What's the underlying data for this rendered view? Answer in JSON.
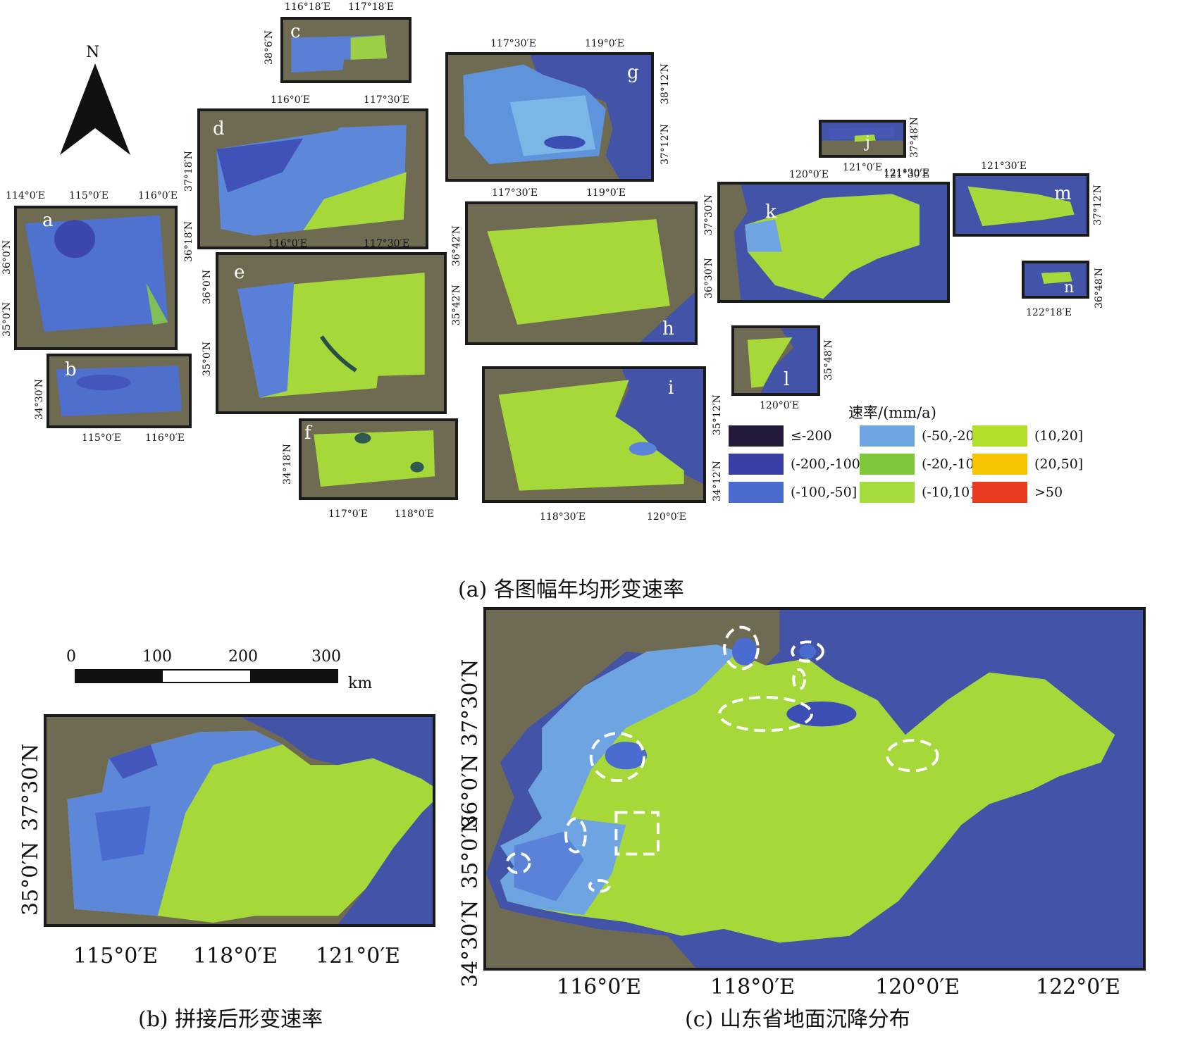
{
  "north_arrow": {
    "label": "N"
  },
  "panels": [
    {
      "id": "a",
      "letter": "a",
      "ticks_top": [
        "114°0′E",
        "115°0′E",
        "116°0′E"
      ],
      "ticks_left": [
        "36°0′N",
        "35°0′N"
      ]
    },
    {
      "id": "b",
      "letter": "b",
      "ticks_bottom": [
        "115°0′E",
        "116°0′E"
      ],
      "ticks_left": [
        "34°30′N"
      ]
    },
    {
      "id": "c",
      "letter": "c",
      "ticks_top": [
        "116°18′E",
        "117°18′E"
      ],
      "ticks_left": [
        "38°6′N"
      ]
    },
    {
      "id": "d",
      "letter": "d",
      "ticks_top": [
        "116°0′E",
        "117°30′E"
      ],
      "ticks_left": [
        "37°18′N",
        "36°18′N"
      ]
    },
    {
      "id": "e",
      "letter": "e",
      "ticks_top": [
        "116°0′E",
        "117°30′E"
      ],
      "ticks_left": [
        "36°0′N",
        "35°0′N"
      ]
    },
    {
      "id": "f",
      "letter": "f",
      "ticks_bottom": [
        "117°0′E",
        "118°0′E"
      ],
      "ticks_left": [
        "34°18′N"
      ]
    },
    {
      "id": "g",
      "letter": "g",
      "ticks_top": [
        "117°30′E",
        "119°0′E"
      ],
      "ticks_right": [
        "38°12′N",
        "37°12′N"
      ]
    },
    {
      "id": "h",
      "letter": "h",
      "ticks_top": [
        "117°30′E",
        "119°0′E"
      ],
      "ticks_left": [
        "36°42′N",
        "35°42′N"
      ]
    },
    {
      "id": "i",
      "letter": "i",
      "ticks_bottom": [
        "118°30′E",
        "120°0′E"
      ],
      "ticks_right": [
        "35°12′N",
        "34°12′N"
      ]
    },
    {
      "id": "j",
      "letter": "j",
      "ticks_bottom": [
        "121°0′E",
        "121°30′E"
      ],
      "ticks_right": [
        "37°48′N"
      ]
    },
    {
      "id": "k",
      "letter": "k",
      "ticks_top": [
        "120°0′E",
        "121°30′E"
      ],
      "ticks_left": [
        "37°30′N",
        "36°30′N"
      ]
    },
    {
      "id": "l",
      "letter": "l",
      "ticks_bottom": [
        "120°0′E"
      ],
      "ticks_right": [
        "35°48′N"
      ]
    },
    {
      "id": "m",
      "letter": "m",
      "ticks_top": [
        "121°30′E"
      ],
      "ticks_right": [
        "37°12′N"
      ]
    },
    {
      "id": "n",
      "letter": "n",
      "ticks_bottom": [
        "122°18′E"
      ],
      "ticks_right": [
        "36°48′N"
      ]
    }
  ],
  "legend": {
    "title": "速率/(mm/a)",
    "items": [
      {
        "label": "≤-200",
        "color": "#231a3b"
      },
      {
        "label": "(-200,-100]",
        "color": "#3a3fa6"
      },
      {
        "label": "(-100,-50]",
        "color": "#4a6bd0"
      },
      {
        "label": "(-50,-20]",
        "color": "#6ea4e2"
      },
      {
        "label": "(-20,-10]",
        "color": "#7cc83a"
      },
      {
        "label": "(-10,10]",
        "color": "#a6dc3c"
      },
      {
        "label": "(10,20]",
        "color": "#b2de2c"
      },
      {
        "label": "(20,50]",
        "color": "#f6c400"
      },
      {
        "label": ">50",
        "color": "#e83b1f"
      }
    ]
  },
  "captions": {
    "a": "(a) 各图幅年均形变速率",
    "b": "(b) 拼接后形变速率",
    "c": "(c) 山东省地面沉降分布"
  },
  "scale_bar": {
    "labels": [
      "0",
      "100",
      "200",
      "300"
    ],
    "unit": "km"
  },
  "map_b": {
    "x_ticks": [
      "115°0′E",
      "118°0′E",
      "121°0′E"
    ],
    "y_ticks": [
      "37°30′N",
      "35°0′N"
    ]
  },
  "map_c": {
    "x_ticks": [
      "116°0′E",
      "118°0′E",
      "120°0′E",
      "122°0′E"
    ],
    "y_ticks": [
      "37°30′N",
      "36°0′N",
      "35°0′N",
      "34°30′N"
    ]
  }
}
